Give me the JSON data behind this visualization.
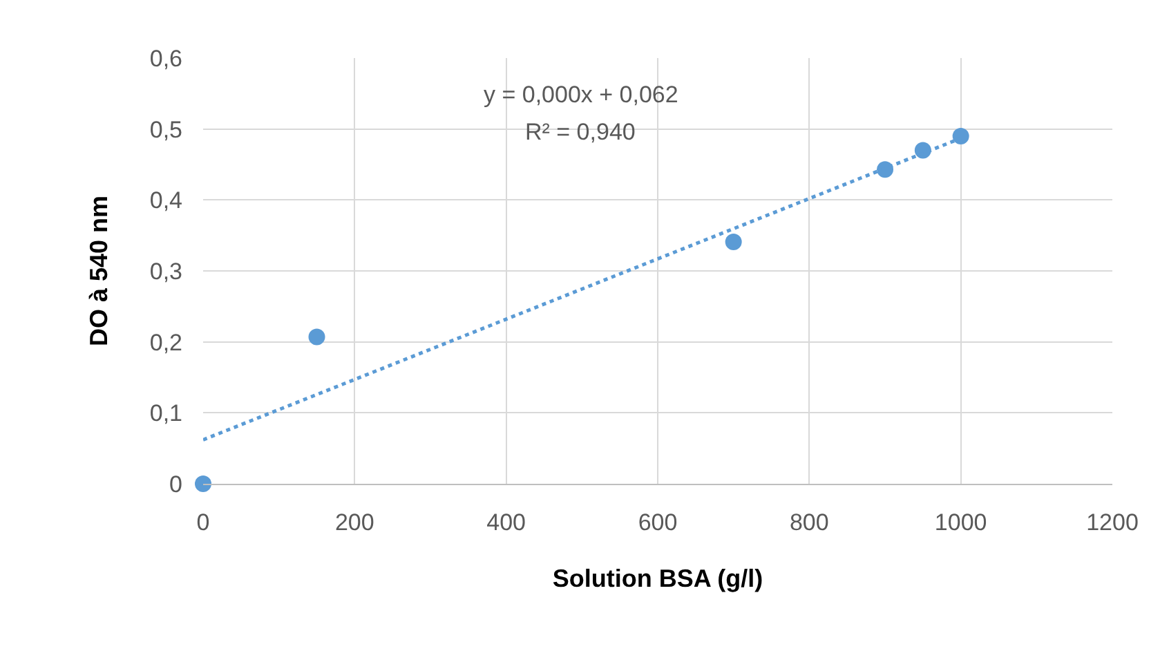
{
  "chart_data": {
    "type": "scatter",
    "xlabel": "Solution BSA (g/l)",
    "ylabel": "DO à 540 nm",
    "x": [
      0,
      150,
      700,
      900,
      950,
      1000
    ],
    "series": [
      {
        "type": "scatter",
        "color": "#5b9bd5",
        "values": [
          0,
          0.207,
          0.341,
          0.443,
          0.47,
          0.49
        ],
        "marker": "circle"
      },
      {
        "type": "line",
        "color": "#5b9bd5",
        "x": [
          0,
          1000
        ],
        "values": [
          0.062,
          0.487
        ],
        "line_style": "dotted",
        "marker": "none"
      }
    ],
    "annotations": [
      "y = 0,000x + 0,062",
      "R² = 0,940"
    ],
    "xlim": [
      0,
      1200
    ],
    "xticks": [
      0,
      200,
      400,
      600,
      800,
      1000,
      1200
    ],
    "ylim": [
      0,
      0.6
    ],
    "yticks": [
      {
        "value": 0,
        "label": "0"
      },
      {
        "value": 0.1,
        "label": "0,1"
      },
      {
        "value": 0.2,
        "label": "0,2"
      },
      {
        "value": 0.3,
        "label": "0,3"
      },
      {
        "value": 0.4,
        "label": "0,4"
      },
      {
        "value": 0.5,
        "label": "0,5"
      },
      {
        "value": 0.6,
        "label": "0,6"
      }
    ],
    "grid": true
  }
}
